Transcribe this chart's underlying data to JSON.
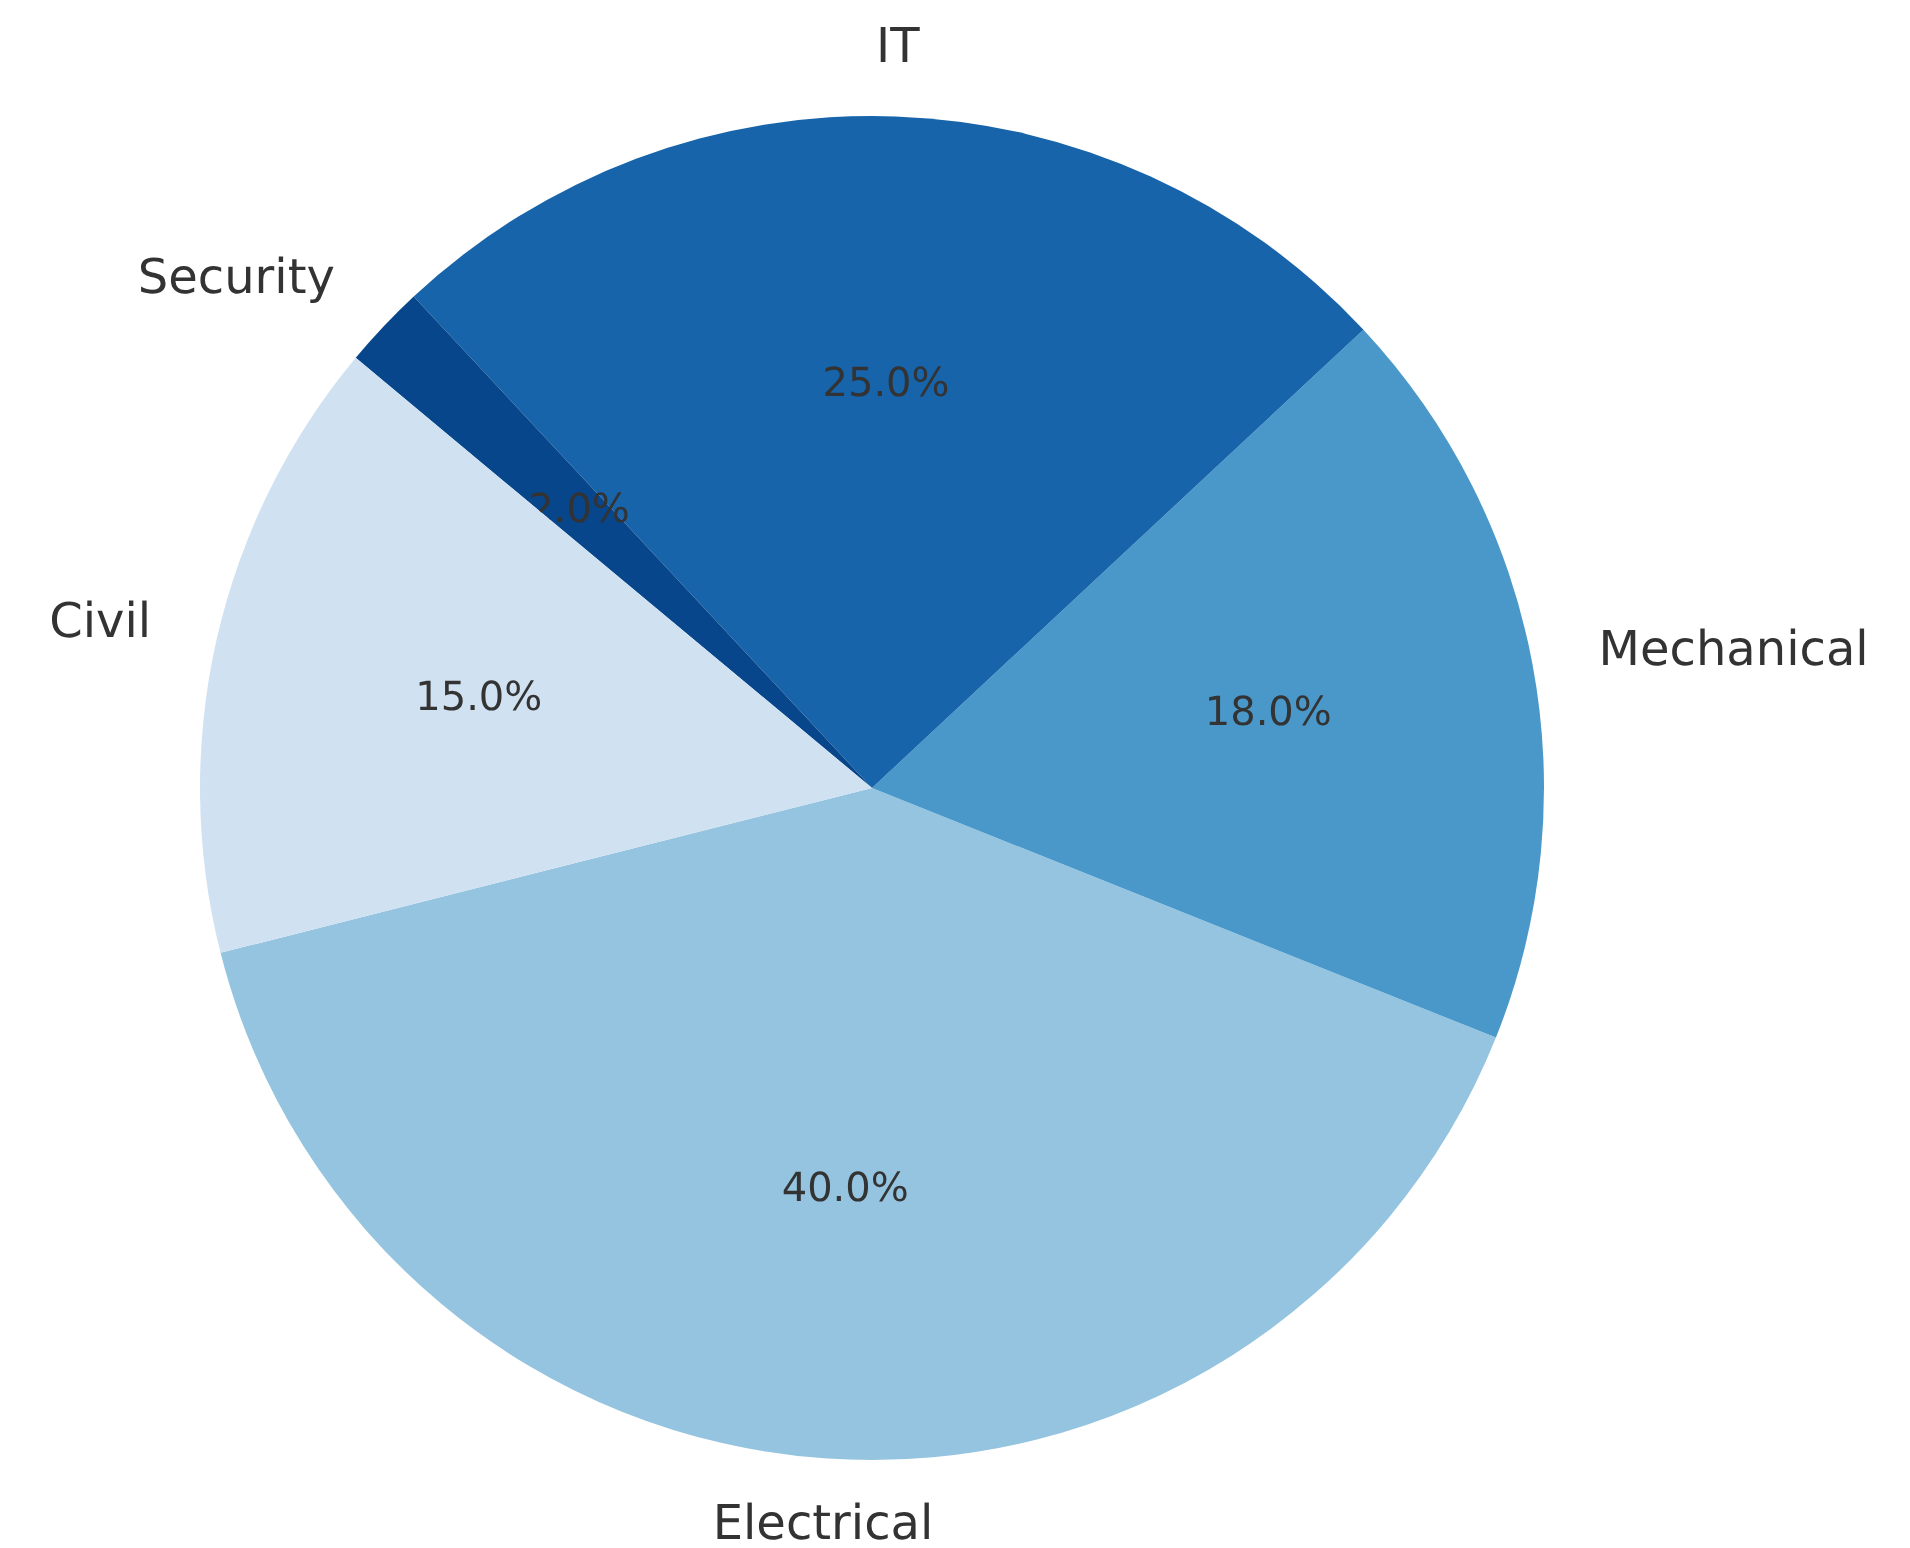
{
  "chart_data": {
    "type": "pie",
    "categories": [
      "Electrical",
      "Mechanical",
      "IT",
      "Security",
      "Civil"
    ],
    "values": [
      40,
      18,
      25,
      2,
      15
    ],
    "value_labels": [
      "40.0%",
      "18.0%",
      "25.0%",
      "2.0%",
      "15.0%"
    ],
    "colors": [
      "#94c4df",
      "#4a98c9",
      "#1764ab",
      "#08468b",
      "#d0e1f2"
    ]
  }
}
